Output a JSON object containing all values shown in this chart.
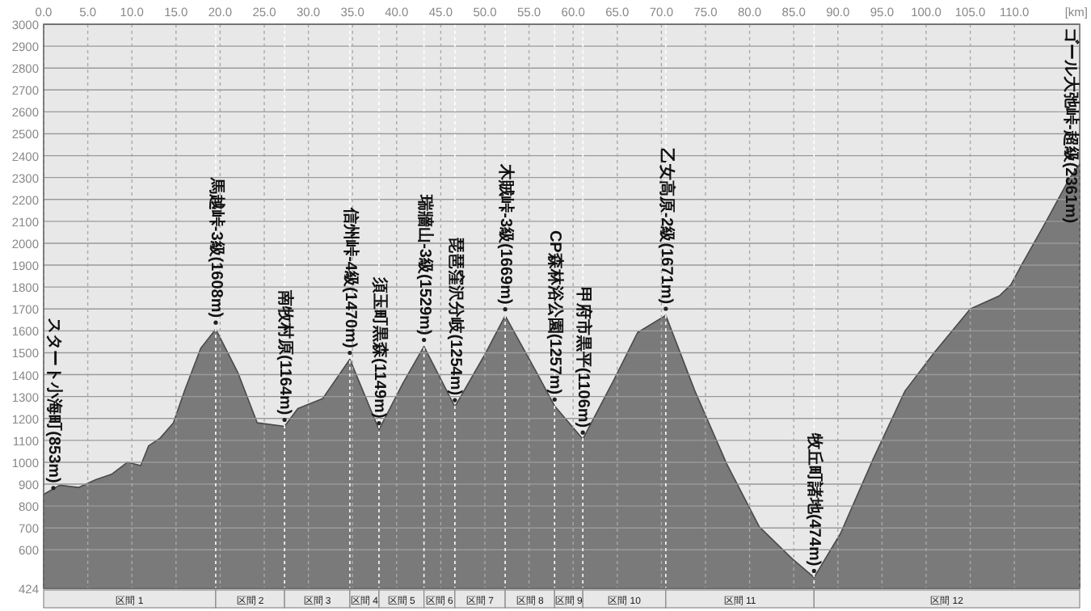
{
  "chart_data": {
    "type": "area",
    "xlabel": "[km]",
    "xlim": [
      0,
      117.4
    ],
    "ylim": [
      424,
      3000
    ],
    "xticks": [
      {
        "value": 0,
        "label": "0.0"
      },
      {
        "value": 5,
        "label": "5.0"
      },
      {
        "value": 10,
        "label": "10.0"
      },
      {
        "value": 15,
        "label": "15.0"
      },
      {
        "value": 20,
        "label": "20.0"
      },
      {
        "value": 25,
        "label": "25.0"
      },
      {
        "value": 30,
        "label": "30.0"
      },
      {
        "value": 35,
        "label": "35.0"
      },
      {
        "value": 40,
        "label": "40.0"
      },
      {
        "value": 45,
        "label": "45.0"
      },
      {
        "value": 50,
        "label": "50.0"
      },
      {
        "value": 55,
        "label": "55.0"
      },
      {
        "value": 60,
        "label": "60.0"
      },
      {
        "value": 65,
        "label": "65.0"
      },
      {
        "value": 70,
        "label": "70.0"
      },
      {
        "value": 75,
        "label": "75.0"
      },
      {
        "value": 80,
        "label": "80.0"
      },
      {
        "value": 85,
        "label": "85.0"
      },
      {
        "value": 90,
        "label": "90.0"
      },
      {
        "value": 95,
        "label": "95.0"
      },
      {
        "value": 100,
        "label": "100.0"
      },
      {
        "value": 105,
        "label": "105.0"
      },
      {
        "value": 110,
        "label": "110.0"
      }
    ],
    "yticks": [
      424,
      600,
      700,
      800,
      900,
      1000,
      1100,
      1200,
      1300,
      1400,
      1500,
      1600,
      1700,
      1800,
      1900,
      2000,
      2100,
      2200,
      2300,
      2400,
      2500,
      2600,
      2700,
      2800,
      2900,
      3000
    ],
    "grid": true,
    "series": [
      {
        "color": "#7a7a7a",
        "x": [
          0,
          1.8,
          4,
          5.9,
          7.7,
          9.5,
          11,
          11.9,
          13.2,
          14.7,
          16,
          17.8,
          19.5,
          22,
          24.2,
          27.3,
          28.8,
          31.6,
          34.7,
          38,
          40.7,
          43.1,
          46.6,
          49.9,
          52.3,
          56,
          57.9,
          61.1,
          64.6,
          67.3,
          70.5,
          73.8,
          77.4,
          81.1,
          84.8,
          87.3,
          90.3,
          94,
          97.6,
          100.9,
          105,
          108.3,
          109.6,
          110.8,
          113.6,
          116.3,
          117.4
        ],
        "values": [
          853,
          895,
          885,
          920,
          945,
          1000,
          985,
          1075,
          1110,
          1180,
          1330,
          1520,
          1608,
          1410,
          1180,
          1164,
          1245,
          1290,
          1470,
          1149,
          1360,
          1529,
          1254,
          1485,
          1669,
          1400,
          1257,
          1106,
          1375,
          1592,
          1671,
          1325,
          993,
          705,
          560,
          474,
          675,
          1015,
          1325,
          1500,
          1700,
          1760,
          1810,
          1900,
          2100,
          2300,
          2361
        ]
      }
    ],
    "bands": [
      {
        "axis": "x",
        "from": 0,
        "to": 19.5,
        "label": "区間 1",
        "color": "#e8e8e8"
      },
      {
        "axis": "x",
        "from": 19.5,
        "to": 27.3,
        "label": "区間 2",
        "color": "#e8e8e8"
      },
      {
        "axis": "x",
        "from": 27.3,
        "to": 34.7,
        "label": "区間 3",
        "color": "#e8e8e8"
      },
      {
        "axis": "x",
        "from": 34.7,
        "to": 38,
        "label": "区間 4",
        "color": "#e8e8e8"
      },
      {
        "axis": "x",
        "from": 38,
        "to": 43.1,
        "label": "区間 5",
        "color": "#e8e8e8"
      },
      {
        "axis": "x",
        "from": 43.1,
        "to": 46.6,
        "label": "区間 6",
        "color": "#e8e8e8"
      },
      {
        "axis": "x",
        "from": 46.6,
        "to": 52.3,
        "label": "区間 7",
        "color": "#e8e8e8"
      },
      {
        "axis": "x",
        "from": 52.3,
        "to": 57.9,
        "label": "区間 8",
        "color": "#e8e8e8"
      },
      {
        "axis": "x",
        "from": 57.9,
        "to": 61.1,
        "label": "区間 9",
        "color": "#e8e8e8"
      },
      {
        "axis": "x",
        "from": 61.1,
        "to": 70.5,
        "label": "区間 10",
        "color": "#e8e8e8"
      },
      {
        "axis": "x",
        "from": 70.5,
        "to": 87.3,
        "label": "区間 11",
        "color": "#e8e8e8"
      },
      {
        "axis": "x",
        "from": 87.3,
        "to": 117.4,
        "label": "区間 12",
        "color": "#e8e8e8"
      }
    ],
    "annotations": [
      {
        "text": "スタート小海町(853m)",
        "x": 0,
        "y": 853
      },
      {
        "text": "馬越峠-3級(1608m)",
        "x": 19.5,
        "y": 1608
      },
      {
        "text": "南牧村原(1164m)",
        "x": 27.3,
        "y": 1164
      },
      {
        "text": "信州峠-4級(1470m)",
        "x": 34.7,
        "y": 1470
      },
      {
        "text": "須玉町黒森(1149m)",
        "x": 38,
        "y": 1149
      },
      {
        "text": "瑞牆山-3級(1529m)",
        "x": 43.1,
        "y": 1529
      },
      {
        "text": "琵琶窪沢分岐(1254m)",
        "x": 46.6,
        "y": 1254
      },
      {
        "text": "木賊峠-3級(1669m)",
        "x": 52.3,
        "y": 1669
      },
      {
        "text": "CP森林浴公園(1257m)",
        "x": 57.9,
        "y": 1257
      },
      {
        "text": "甲府市黒平(1106m)",
        "x": 61.1,
        "y": 1106
      },
      {
        "text": "乙女高原-2級(1671m)",
        "x": 70.5,
        "y": 1671
      },
      {
        "text": "牧丘町諸地(474m)",
        "x": 87.3,
        "y": 474
      },
      {
        "text": "ゴール大弛峠-超級(2361m)",
        "x": 117.4,
        "y": 2361
      }
    ]
  }
}
